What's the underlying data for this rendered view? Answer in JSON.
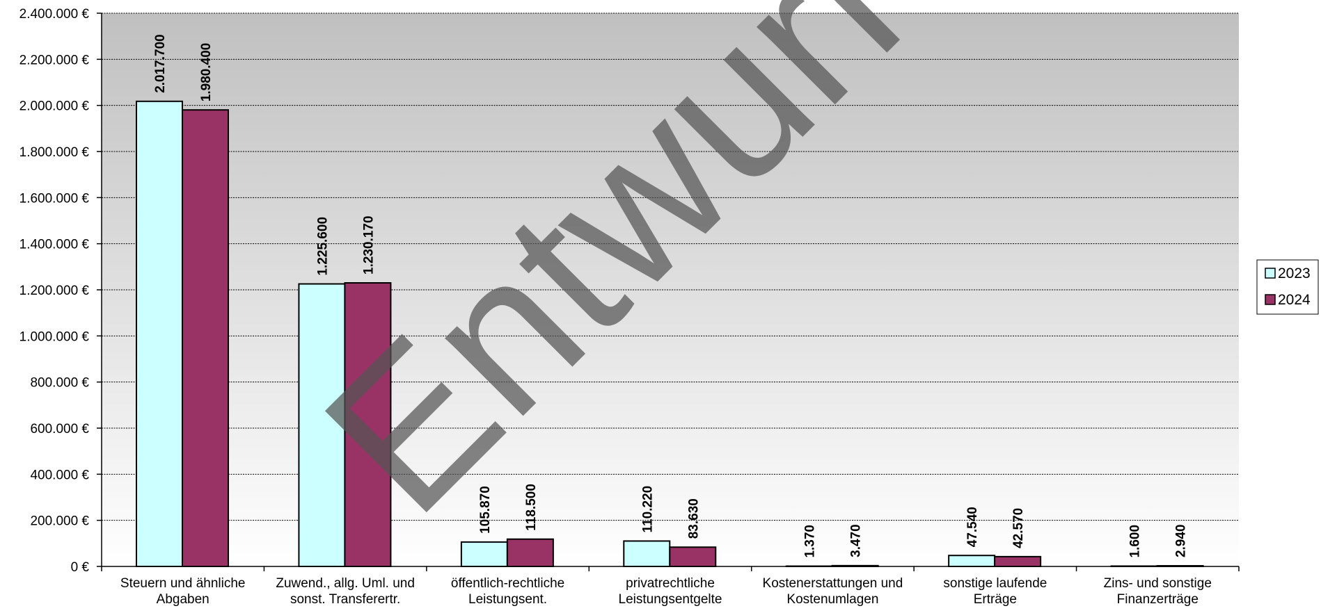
{
  "chart_data": {
    "type": "bar",
    "categories": [
      [
        "Steuern und ähnliche",
        "Abgaben"
      ],
      [
        "Zuwend., allg. Uml. und",
        "sonst. Transferertr."
      ],
      [
        "öffentlich-rechtliche",
        "Leistungsent."
      ],
      [
        "privatrechtliche",
        "Leistungsentgelte"
      ],
      [
        "Kostenerstattungen und",
        "Kostenumlagen"
      ],
      [
        "sonstige laufende",
        "Erträge"
      ],
      [
        "Zins- und sonstige",
        "Finanzerträge"
      ]
    ],
    "series": [
      {
        "name": "2023",
        "color": "#CCFFFF",
        "values": [
          2017700,
          1225600,
          105870,
          110220,
          1370,
          47540,
          1600
        ],
        "labels": [
          "2.017.700",
          "1.225.600",
          "105.870",
          "110.220",
          "1.370",
          "47.540",
          "1.600"
        ]
      },
      {
        "name": "2024",
        "color": "#993366",
        "values": [
          1980400,
          1230170,
          118500,
          83630,
          3470,
          42570,
          2940
        ],
        "labels": [
          "1.980.400",
          "1.230.170",
          "118.500",
          "83.630",
          "3.470",
          "42.570",
          "2.940"
        ]
      }
    ],
    "ylim": [
      0,
      2400000
    ],
    "yticks": [
      {
        "value": 0,
        "label": "0 €"
      },
      {
        "value": 200000,
        "label": "200.000 €"
      },
      {
        "value": 400000,
        "label": "400.000 €"
      },
      {
        "value": 600000,
        "label": "600.000 €"
      },
      {
        "value": 800000,
        "label": "800.000 €"
      },
      {
        "value": 1000000,
        "label": "1.000.000 €"
      },
      {
        "value": 1200000,
        "label": "1.200.000 €"
      },
      {
        "value": 1400000,
        "label": "1.400.000 €"
      },
      {
        "value": 1600000,
        "label": "1.600.000 €"
      },
      {
        "value": 1800000,
        "label": "1.800.000 €"
      },
      {
        "value": 2000000,
        "label": "2.000.000 €"
      },
      {
        "value": 2200000,
        "label": "2.200.000 €"
      },
      {
        "value": 2400000,
        "label": "2.400.000 €"
      }
    ],
    "grid": true,
    "legend_position": "right",
    "background_gradient": [
      "#C0C0C0",
      "#FFFFFF"
    ],
    "watermark": "Entwurf"
  }
}
